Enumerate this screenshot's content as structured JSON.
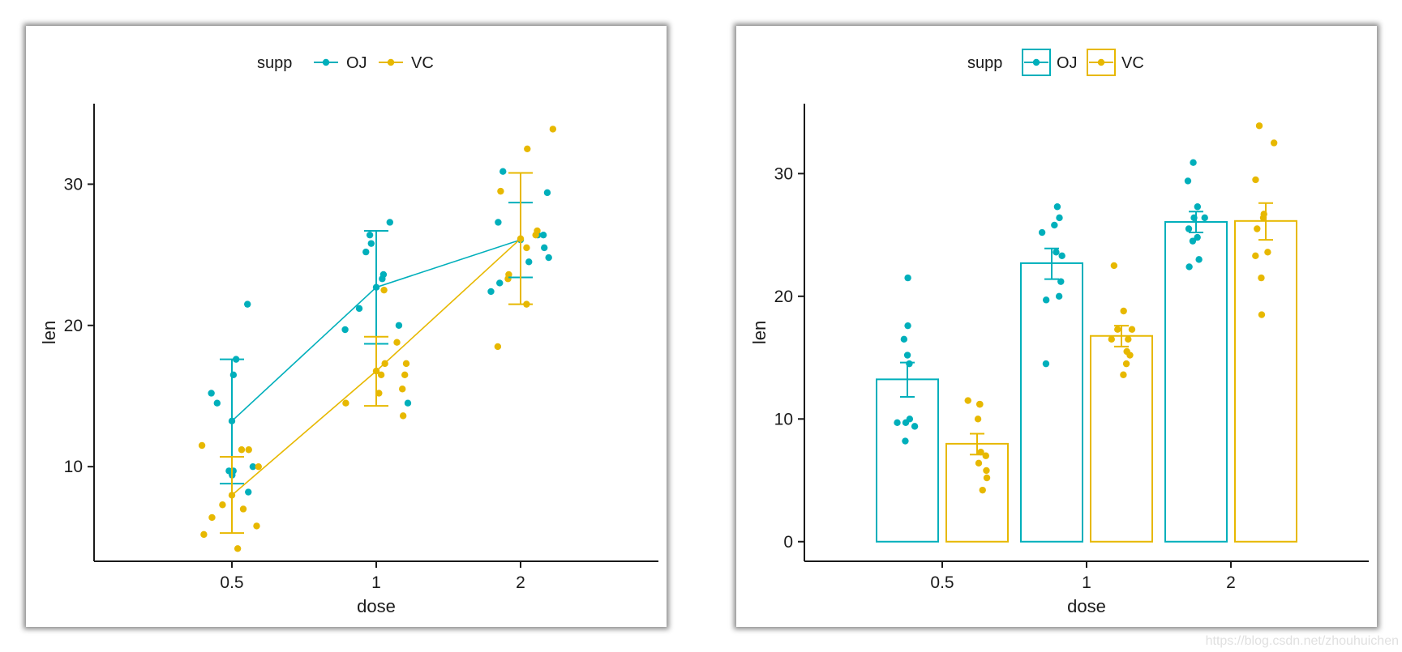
{
  "colors": {
    "OJ": "#00AFBB",
    "VC": "#E7B800"
  },
  "watermark": "https://blog.csdn.net/zhouhuichen",
  "chart_data": [
    {
      "type": "line",
      "xlabel": "dose",
      "ylabel": "len",
      "categories": [
        "0.5",
        "1",
        "2"
      ],
      "yticks": [
        10,
        20,
        30
      ],
      "ylim": [
        3.3,
        35.7
      ],
      "legend": {
        "title": "supp",
        "placement": "top",
        "entries": [
          "OJ",
          "VC"
        ]
      },
      "grid": false,
      "series": [
        {
          "name": "OJ",
          "mean": [
            13.23,
            22.7,
            26.06
          ],
          "err_low": [
            8.8,
            18.7,
            23.4
          ],
          "err_high": [
            17.6,
            26.7,
            28.7
          ],
          "points": [
            {
              "x": "0.5",
              "y": 15.2
            },
            {
              "x": "0.5",
              "y": 21.5
            },
            {
              "x": "0.5",
              "y": 17.6
            },
            {
              "x": "0.5",
              "y": 9.7
            },
            {
              "x": "0.5",
              "y": 14.5
            },
            {
              "x": "0.5",
              "y": 10.0
            },
            {
              "x": "0.5",
              "y": 8.2
            },
            {
              "x": "0.5",
              "y": 9.4
            },
            {
              "x": "0.5",
              "y": 16.5
            },
            {
              "x": "0.5",
              "y": 9.7
            },
            {
              "x": "1",
              "y": 19.7
            },
            {
              "x": "1",
              "y": 23.3
            },
            {
              "x": "1",
              "y": 23.6
            },
            {
              "x": "1",
              "y": 26.4
            },
            {
              "x": "1",
              "y": 20.0
            },
            {
              "x": "1",
              "y": 25.2
            },
            {
              "x": "1",
              "y": 25.8
            },
            {
              "x": "1",
              "y": 21.2
            },
            {
              "x": "1",
              "y": 14.5
            },
            {
              "x": "1",
              "y": 27.3
            },
            {
              "x": "2",
              "y": 25.5
            },
            {
              "x": "2",
              "y": 26.4
            },
            {
              "x": "2",
              "y": 22.4
            },
            {
              "x": "2",
              "y": 24.5
            },
            {
              "x": "2",
              "y": 24.8
            },
            {
              "x": "2",
              "y": 30.9
            },
            {
              "x": "2",
              "y": 26.4
            },
            {
              "x": "2",
              "y": 27.3
            },
            {
              "x": "2",
              "y": 29.4
            },
            {
              "x": "2",
              "y": 23.0
            }
          ]
        },
        {
          "name": "VC",
          "mean": [
            7.98,
            16.77,
            26.14
          ],
          "err_low": [
            5.3,
            14.3,
            21.5
          ],
          "err_high": [
            10.7,
            19.2,
            30.8
          ],
          "points": [
            {
              "x": "0.5",
              "y": 4.2
            },
            {
              "x": "0.5",
              "y": 11.5
            },
            {
              "x": "0.5",
              "y": 7.3
            },
            {
              "x": "0.5",
              "y": 5.8
            },
            {
              "x": "0.5",
              "y": 6.4
            },
            {
              "x": "0.5",
              "y": 10.0
            },
            {
              "x": "0.5",
              "y": 11.2
            },
            {
              "x": "0.5",
              "y": 11.2
            },
            {
              "x": "0.5",
              "y": 5.2
            },
            {
              "x": "0.5",
              "y": 7.0
            },
            {
              "x": "1",
              "y": 16.5
            },
            {
              "x": "1",
              "y": 16.5
            },
            {
              "x": "1",
              "y": 15.2
            },
            {
              "x": "1",
              "y": 17.3
            },
            {
              "x": "1",
              "y": 22.5
            },
            {
              "x": "1",
              "y": 17.3
            },
            {
              "x": "1",
              "y": 13.6
            },
            {
              "x": "1",
              "y": 14.5
            },
            {
              "x": "1",
              "y": 18.8
            },
            {
              "x": "1",
              "y": 15.5
            },
            {
              "x": "2",
              "y": 23.6
            },
            {
              "x": "2",
              "y": 18.5
            },
            {
              "x": "2",
              "y": 33.9
            },
            {
              "x": "2",
              "y": 25.5
            },
            {
              "x": "2",
              "y": 26.4
            },
            {
              "x": "2",
              "y": 32.5
            },
            {
              "x": "2",
              "y": 26.7
            },
            {
              "x": "2",
              "y": 21.5
            },
            {
              "x": "2",
              "y": 23.3
            },
            {
              "x": "2",
              "y": 29.5
            }
          ]
        }
      ]
    },
    {
      "type": "bar",
      "xlabel": "dose",
      "ylabel": "len",
      "categories": [
        "0.5",
        "1",
        "2"
      ],
      "yticks": [
        0,
        10,
        20,
        30
      ],
      "ylim": [
        -1.6,
        35.7
      ],
      "legend": {
        "title": "supp",
        "placement": "top",
        "entries": [
          "OJ",
          "VC"
        ]
      },
      "grid": false,
      "series": [
        {
          "name": "OJ",
          "values": [
            13.23,
            22.7,
            26.06
          ],
          "err_low": [
            11.8,
            21.4,
            25.2
          ],
          "err_high": [
            14.6,
            23.9,
            26.9
          ],
          "points": [
            {
              "x": "0.5",
              "y": 15.2
            },
            {
              "x": "0.5",
              "y": 21.5
            },
            {
              "x": "0.5",
              "y": 17.6
            },
            {
              "x": "0.5",
              "y": 9.7
            },
            {
              "x": "0.5",
              "y": 14.5
            },
            {
              "x": "0.5",
              "y": 10.0
            },
            {
              "x": "0.5",
              "y": 8.2
            },
            {
              "x": "0.5",
              "y": 9.4
            },
            {
              "x": "0.5",
              "y": 16.5
            },
            {
              "x": "0.5",
              "y": 9.7
            },
            {
              "x": "1",
              "y": 19.7
            },
            {
              "x": "1",
              "y": 23.3
            },
            {
              "x": "1",
              "y": 23.6
            },
            {
              "x": "1",
              "y": 26.4
            },
            {
              "x": "1",
              "y": 20.0
            },
            {
              "x": "1",
              "y": 25.2
            },
            {
              "x": "1",
              "y": 25.8
            },
            {
              "x": "1",
              "y": 21.2
            },
            {
              "x": "1",
              "y": 14.5
            },
            {
              "x": "1",
              "y": 27.3
            },
            {
              "x": "2",
              "y": 25.5
            },
            {
              "x": "2",
              "y": 26.4
            },
            {
              "x": "2",
              "y": 22.4
            },
            {
              "x": "2",
              "y": 24.5
            },
            {
              "x": "2",
              "y": 24.8
            },
            {
              "x": "2",
              "y": 30.9
            },
            {
              "x": "2",
              "y": 26.4
            },
            {
              "x": "2",
              "y": 27.3
            },
            {
              "x": "2",
              "y": 29.4
            },
            {
              "x": "2",
              "y": 23.0
            }
          ]
        },
        {
          "name": "VC",
          "values": [
            7.98,
            16.77,
            26.14
          ],
          "err_low": [
            7.1,
            15.9,
            24.6
          ],
          "err_high": [
            8.8,
            17.6,
            27.6
          ],
          "points": [
            {
              "x": "0.5",
              "y": 4.2
            },
            {
              "x": "0.5",
              "y": 11.5
            },
            {
              "x": "0.5",
              "y": 7.3
            },
            {
              "x": "0.5",
              "y": 5.8
            },
            {
              "x": "0.5",
              "y": 6.4
            },
            {
              "x": "0.5",
              "y": 10.0
            },
            {
              "x": "0.5",
              "y": 11.2
            },
            {
              "x": "0.5",
              "y": 11.2
            },
            {
              "x": "0.5",
              "y": 5.2
            },
            {
              "x": "0.5",
              "y": 7.0
            },
            {
              "x": "1",
              "y": 16.5
            },
            {
              "x": "1",
              "y": 16.5
            },
            {
              "x": "1",
              "y": 15.2
            },
            {
              "x": "1",
              "y": 17.3
            },
            {
              "x": "1",
              "y": 22.5
            },
            {
              "x": "1",
              "y": 17.3
            },
            {
              "x": "1",
              "y": 13.6
            },
            {
              "x": "1",
              "y": 14.5
            },
            {
              "x": "1",
              "y": 18.8
            },
            {
              "x": "1",
              "y": 15.5
            },
            {
              "x": "2",
              "y": 23.6
            },
            {
              "x": "2",
              "y": 18.5
            },
            {
              "x": "2",
              "y": 33.9
            },
            {
              "x": "2",
              "y": 25.5
            },
            {
              "x": "2",
              "y": 26.4
            },
            {
              "x": "2",
              "y": 32.5
            },
            {
              "x": "2",
              "y": 26.7
            },
            {
              "x": "2",
              "y": 21.5
            },
            {
              "x": "2",
              "y": 23.3
            },
            {
              "x": "2",
              "y": 29.5
            }
          ]
        }
      ]
    }
  ]
}
